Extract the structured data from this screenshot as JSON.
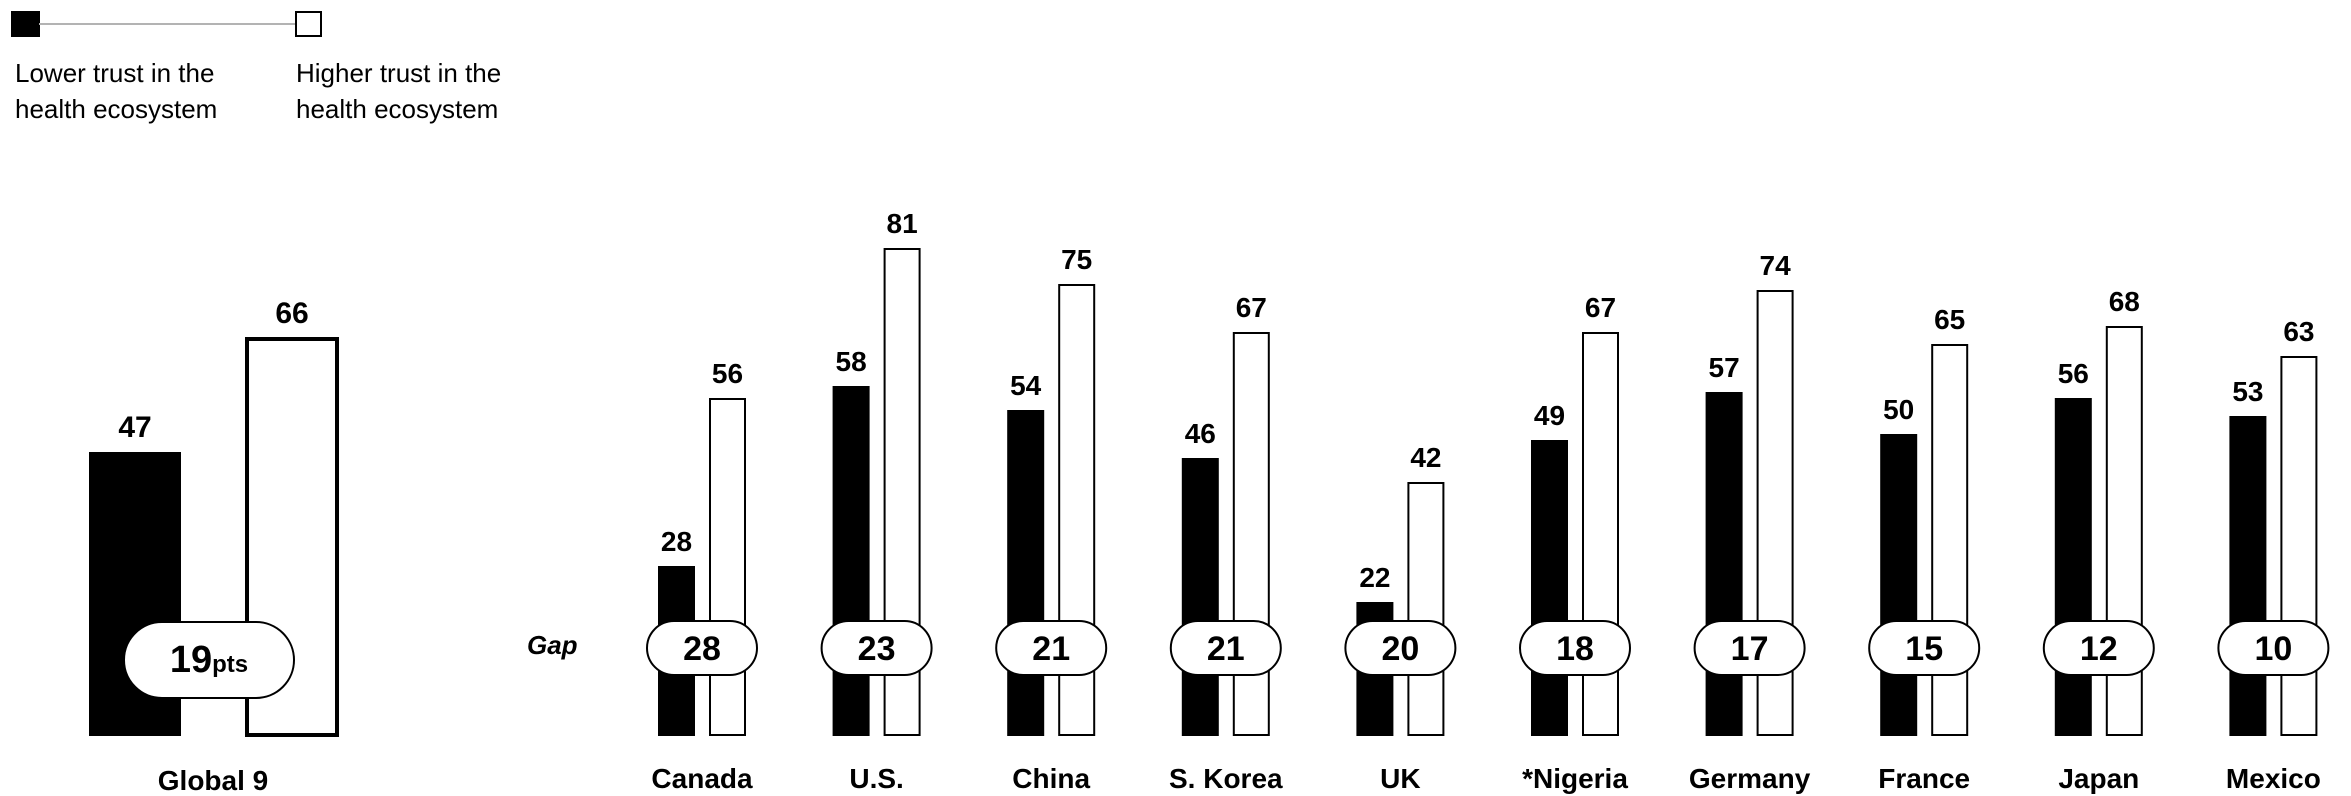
{
  "legend": {
    "low_label_line1": "Lower trust in the",
    "low_label_line2": "health ecosystem",
    "high_label_line1": "Higher trust in the",
    "high_label_line2": "health ecosystem"
  },
  "gap_label": "Gap",
  "pts_suffix": "pts",
  "chart_data": {
    "type": "bar",
    "categories": [
      "Global 9",
      "Canada",
      "U.S.",
      "China",
      "S. Korea",
      "UK",
      "*Nigeria",
      "Germany",
      "France",
      "Japan",
      "Mexico"
    ],
    "series": [
      {
        "name": "Lower trust in the health ecosystem",
        "values": [
          47,
          28,
          58,
          54,
          46,
          22,
          49,
          57,
          50,
          56,
          53
        ]
      },
      {
        "name": "Higher trust in the health ecosystem",
        "values": [
          66,
          56,
          81,
          75,
          67,
          42,
          67,
          74,
          65,
          68,
          63
        ]
      }
    ],
    "gaps": [
      19,
      28,
      23,
      21,
      21,
      20,
      18,
      17,
      15,
      12,
      10
    ],
    "colors": {
      "low": "#000000",
      "high": "#ffffff",
      "stroke": "#000000"
    }
  }
}
